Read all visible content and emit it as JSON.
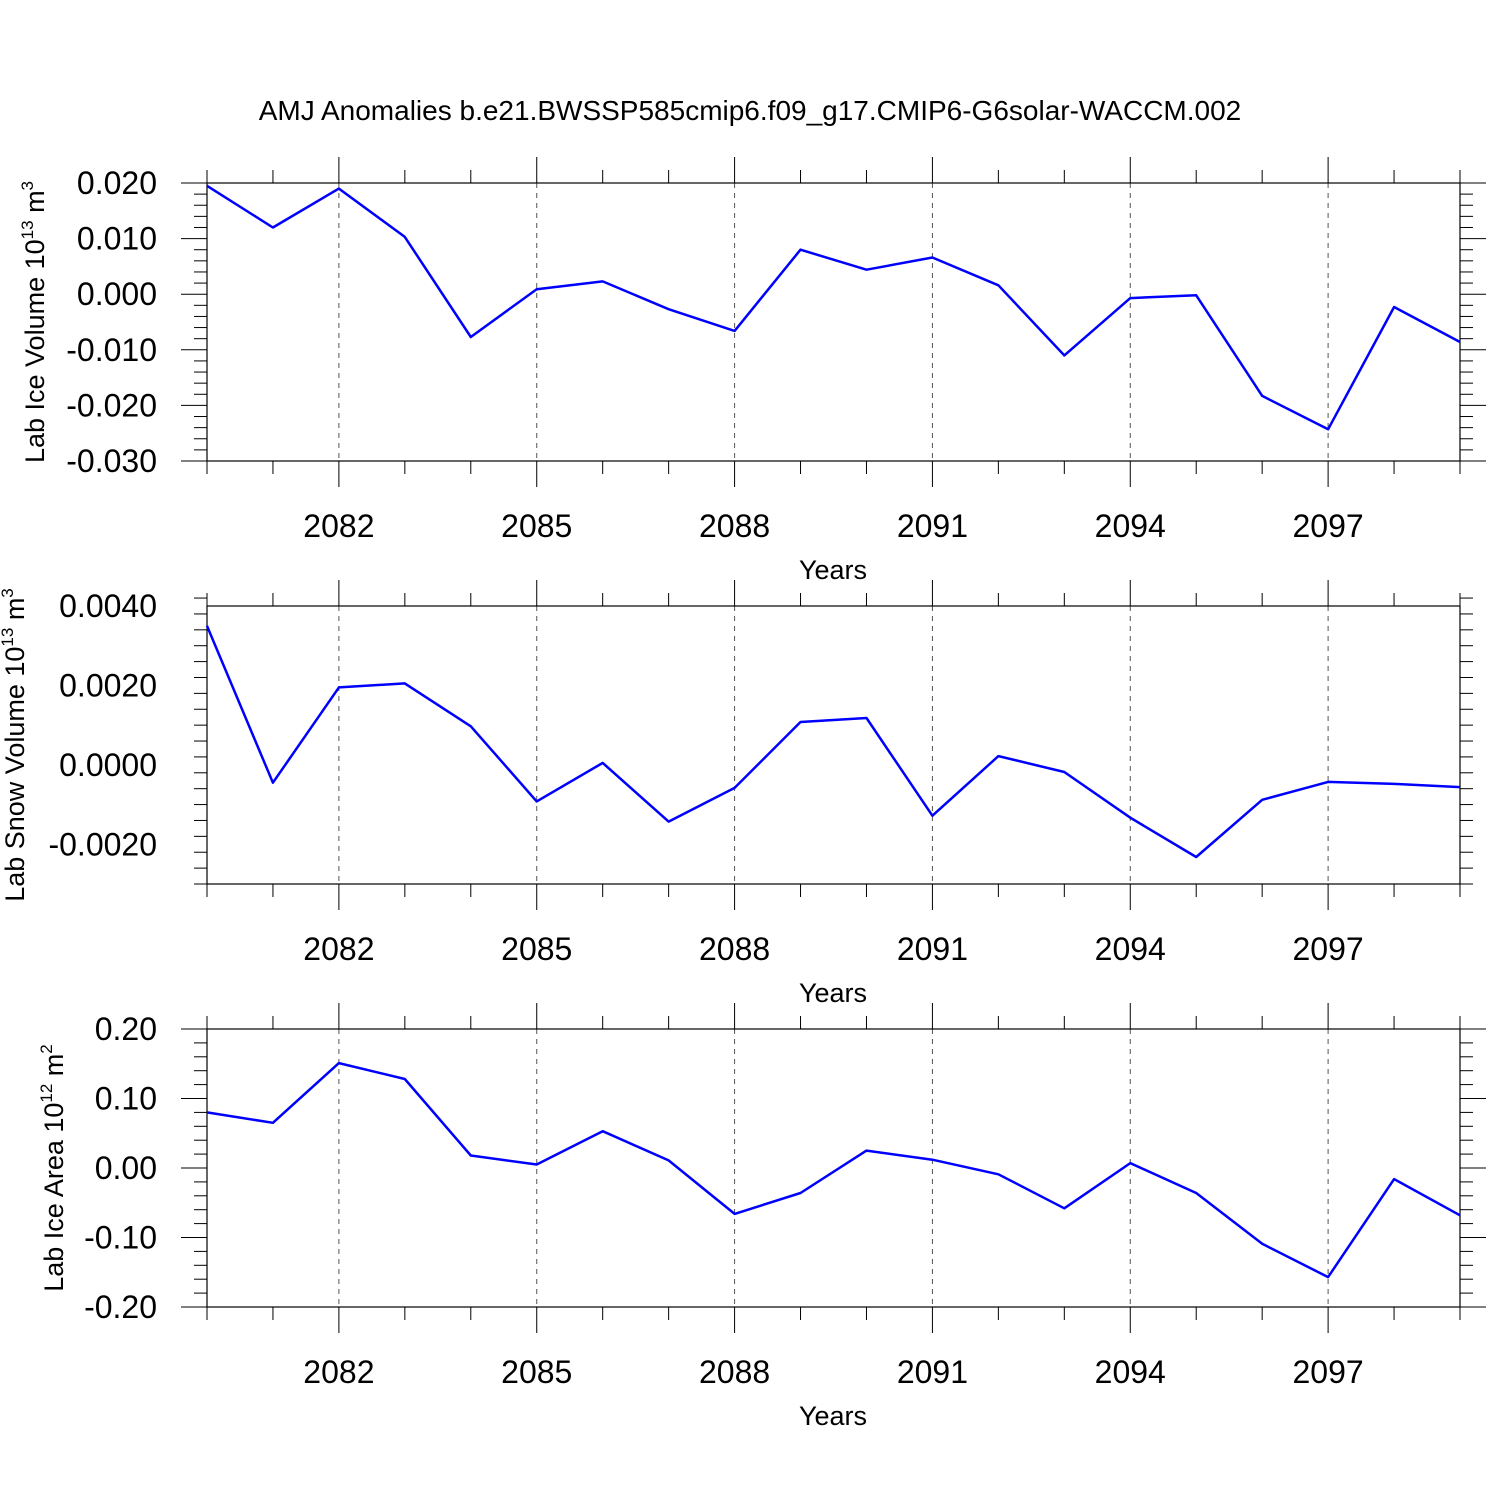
{
  "figure": {
    "title": "AMJ Anomalies b.e21.BWSSP585cmip6.f09_g17.CMIP6-G6solar-WACCM.002"
  },
  "chart_data": [
    {
      "type": "line",
      "title": "",
      "xlabel": "Years",
      "ylabel_text": "Lab Ice Volume 10",
      "ylabel_exp": "13",
      "ylabel_unit": "m",
      "ylabel_unit_exp": "3",
      "x": [
        2080,
        2081,
        2082,
        2083,
        2084,
        2085,
        2086,
        2087,
        2088,
        2089,
        2090,
        2091,
        2092,
        2093,
        2094,
        2095,
        2096,
        2097,
        2098,
        2099
      ],
      "xlim": [
        2080,
        2099
      ],
      "xticks": [
        2082,
        2085,
        2088,
        2091,
        2094,
        2097
      ],
      "xtick_labels": [
        "2082",
        "2085",
        "2088",
        "2091",
        "2094",
        "2097"
      ],
      "ylim": [
        -0.03,
        0.02
      ],
      "yticks": [
        -0.03,
        -0.02,
        -0.01,
        0.0,
        0.01,
        0.02
      ],
      "ytick_labels": [
        "-0.030",
        "-0.020",
        "-0.010",
        "0.000",
        "0.010",
        "0.020"
      ],
      "series": [
        {
          "color": "#0000ff",
          "values": [
            0.0195,
            0.012,
            0.019,
            0.0103,
            -0.0077,
            0.0009,
            0.0023,
            -0.0027,
            -0.0066,
            0.008,
            0.0044,
            0.0066,
            0.0016,
            -0.011,
            -0.0007,
            -0.0002,
            -0.0183,
            -0.0243,
            -0.0023,
            -0.0086
          ]
        }
      ],
      "grid": "vertical dashed at major ticks"
    },
    {
      "type": "line",
      "title": "",
      "xlabel": "Years",
      "ylabel_text": "Lab Snow Volume 10",
      "ylabel_exp": "13",
      "ylabel_unit": "m",
      "ylabel_unit_exp": "3",
      "x": [
        2080,
        2081,
        2082,
        2083,
        2084,
        2085,
        2086,
        2087,
        2088,
        2089,
        2090,
        2091,
        2092,
        2093,
        2094,
        2095,
        2096,
        2097,
        2098,
        2099
      ],
      "xlim": [
        2080,
        2099
      ],
      "xticks": [
        2082,
        2085,
        2088,
        2091,
        2094,
        2097
      ],
      "xtick_labels": [
        "2082",
        "2085",
        "2088",
        "2091",
        "2094",
        "2097"
      ],
      "ylim": [
        -0.003,
        0.004
      ],
      "yticks": [
        -0.002,
        0.0,
        0.002,
        0.004
      ],
      "ytick_labels": [
        "-0.0020",
        "0.0000",
        "0.0020",
        "0.0040"
      ],
      "series": [
        {
          "color": "#0000ff",
          "values": [
            0.0035,
            -0.00045,
            0.00195,
            0.00205,
            0.00097,
            -0.00092,
            5e-05,
            -0.00143,
            -0.00058,
            0.00108,
            0.00118,
            -0.00128,
            0.00022,
            -0.00018,
            -0.00133,
            -0.00232,
            -0.00088,
            -0.00043,
            -0.00048,
            -0.00056
          ]
        }
      ],
      "grid": "vertical dashed at major ticks"
    },
    {
      "type": "line",
      "title": "",
      "xlabel": "Years",
      "ylabel_text": "Lab Ice Area 10",
      "ylabel_exp": "12",
      "ylabel_unit": "m",
      "ylabel_unit_exp": "2",
      "x": [
        2080,
        2081,
        2082,
        2083,
        2084,
        2085,
        2086,
        2087,
        2088,
        2089,
        2090,
        2091,
        2092,
        2093,
        2094,
        2095,
        2096,
        2097,
        2098,
        2099
      ],
      "xlim": [
        2080,
        2099
      ],
      "xticks": [
        2082,
        2085,
        2088,
        2091,
        2094,
        2097
      ],
      "xtick_labels": [
        "2082",
        "2085",
        "2088",
        "2091",
        "2094",
        "2097"
      ],
      "ylim": [
        -0.2,
        0.2
      ],
      "yticks": [
        -0.2,
        -0.1,
        0.0,
        0.1,
        0.2
      ],
      "ytick_labels": [
        "-0.20",
        "-0.10",
        "0.00",
        "0.10",
        "0.20"
      ],
      "series": [
        {
          "color": "#0000ff",
          "values": [
            0.08,
            0.065,
            0.151,
            0.128,
            0.018,
            0.005,
            0.053,
            0.011,
            -0.066,
            -0.036,
            0.025,
            0.012,
            -0.009,
            -0.058,
            0.007,
            -0.036,
            -0.109,
            -0.157,
            -0.016,
            -0.068
          ]
        }
      ],
      "grid": "vertical dashed at major ticks"
    }
  ]
}
